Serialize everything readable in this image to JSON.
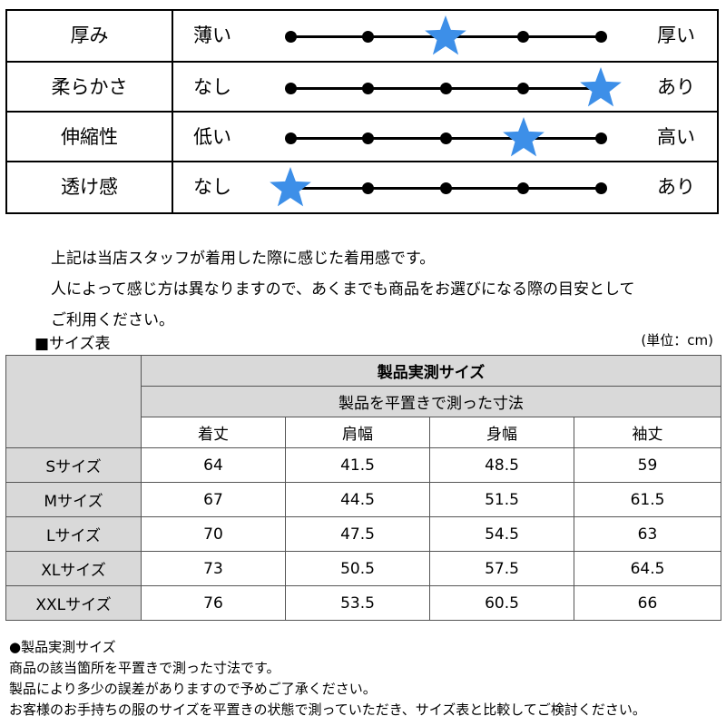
{
  "feel_chart": {
    "rows": [
      {
        "label": "厚み",
        "left": "薄い",
        "right": "厚い",
        "level": 3,
        "steps": 5
      },
      {
        "label": "柔らかさ",
        "left": "なし",
        "right": "あり",
        "level": 5,
        "steps": 5
      },
      {
        "label": "伸縮性",
        "left": "低い",
        "right": "高い",
        "level": 4,
        "steps": 5
      },
      {
        "label": "透け感",
        "left": "なし",
        "right": "あり",
        "level": 1,
        "steps": 5
      }
    ],
    "star_color": "#3d8fe8"
  },
  "note": {
    "line1": "上記は当店スタッフが着用した際に感じた着用感です。",
    "line2": "人によって感じ方は異なりますので、あくまでも商品をお選びになる際の目安として",
    "line3": "ご利用ください。"
  },
  "size_table": {
    "heading": "■サイズ表",
    "unit": "(単位：cm)",
    "group_title": "製品実測サイズ",
    "group_subtitle": "製品を平置きで測った寸法",
    "columns": [
      "着丈",
      "肩幅",
      "身幅",
      "袖丈"
    ],
    "rows": [
      {
        "size": "Sサイズ",
        "values": [
          "64",
          "41.5",
          "48.5",
          "59"
        ]
      },
      {
        "size": "Mサイズ",
        "values": [
          "67",
          "44.5",
          "51.5",
          "61.5"
        ]
      },
      {
        "size": "Lサイズ",
        "values": [
          "70",
          "47.5",
          "54.5",
          "63"
        ]
      },
      {
        "size": "XLサイズ",
        "values": [
          "73",
          "50.5",
          "57.5",
          "64.5"
        ]
      },
      {
        "size": "XXLサイズ",
        "values": [
          "76",
          "53.5",
          "60.5",
          "66"
        ]
      }
    ]
  },
  "footnote": {
    "title": "●製品実測サイズ",
    "line1": "商品の該当箇所を平置きで測った寸法です。",
    "line2": "製品により多少の誤差がありますので予めご了承ください。",
    "line3": "お客様のお手持ちの服のサイズを平置きの状態で測っていただき、サイズ表と比較してご検討ください。"
  }
}
